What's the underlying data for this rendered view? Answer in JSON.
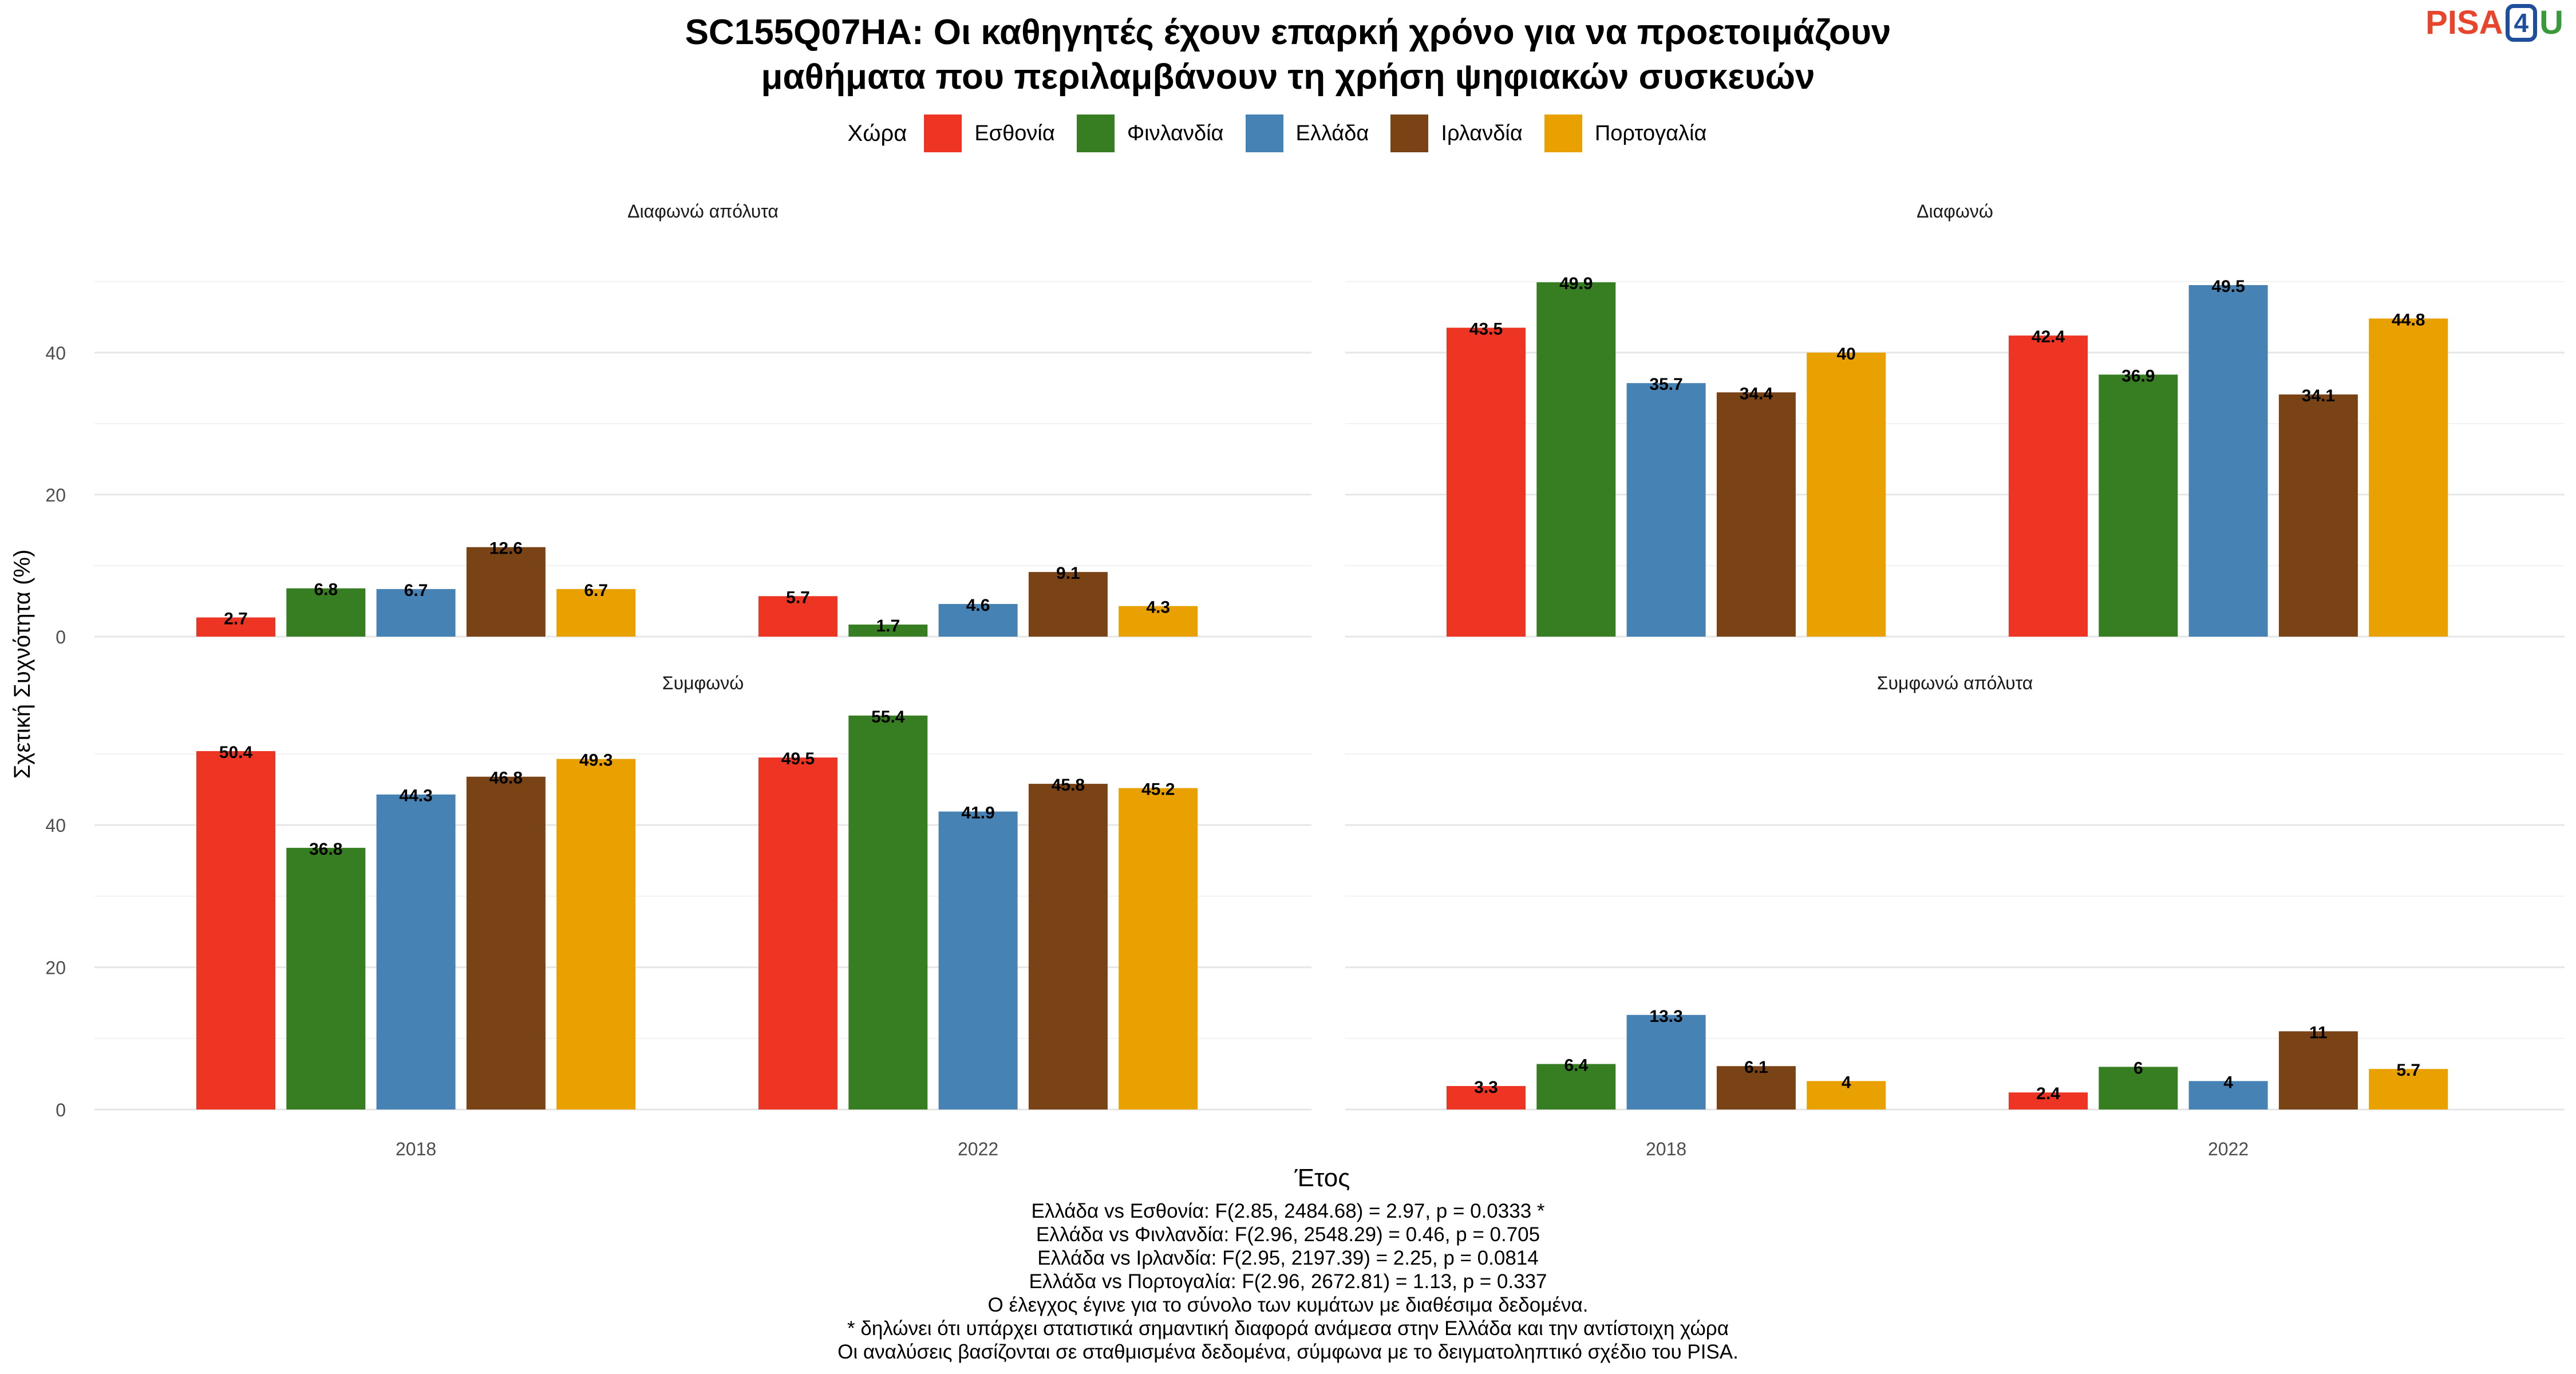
{
  "title_lines": [
    "SC155Q07HA: Οι καθηγητές έχουν επαρκή χρόνο για να προετοιμάζουν",
    "μαθήματα που περιλαμβάνουν τη χρήση ψηφιακών συσκευών"
  ],
  "logo": {
    "pisa": "PISA",
    "four": "4",
    "u": "U"
  },
  "chart_data": {
    "type": "bar",
    "ylabel": "Σχετική Συχνότητα (%)",
    "xlabel": "Έτος",
    "legend_title": "Χώρα",
    "legend_position": "top",
    "ylim": [
      0,
      57
    ],
    "yticks": [
      0,
      20,
      40
    ],
    "grid": true,
    "categories": [
      "2018",
      "2022"
    ],
    "countries": [
      {
        "name": "Εσθονία",
        "color": "#EE3524"
      },
      {
        "name": "Φινλανδία",
        "color": "#377E22"
      },
      {
        "name": "Ελλάδα",
        "color": "#4682B4"
      },
      {
        "name": "Ιρλανδία",
        "color": "#7A4316"
      },
      {
        "name": "Πορτογαλία",
        "color": "#E8A100"
      }
    ],
    "panels": [
      {
        "title": "Διαφωνώ απόλυτα",
        "values": {
          "2018": [
            2.7,
            6.8,
            6.7,
            12.6,
            6.7
          ],
          "2022": [
            5.7,
            1.7,
            4.6,
            9.1,
            4.3
          ]
        }
      },
      {
        "title": "Διαφωνώ",
        "values": {
          "2018": [
            43.5,
            49.9,
            35.7,
            34.4,
            40
          ],
          "2022": [
            42.4,
            36.9,
            49.5,
            34.1,
            44.8
          ]
        }
      },
      {
        "title": "Συμφωνώ",
        "values": {
          "2018": [
            50.4,
            36.8,
            44.3,
            46.8,
            49.3
          ],
          "2022": [
            49.5,
            55.4,
            41.9,
            45.8,
            45.2
          ]
        }
      },
      {
        "title": "Συμφωνώ απόλυτα",
        "values": {
          "2018": [
            3.3,
            6.4,
            13.3,
            6.1,
            4
          ],
          "2022": [
            2.4,
            6,
            4,
            11,
            5.7
          ]
        }
      }
    ]
  },
  "footer_lines": [
    "Ελλάδα vs Εσθονία: F(2.85, 2484.68) = 2.97, p = 0.0333 *",
    "Ελλάδα vs Φινλανδία: F(2.96, 2548.29) = 0.46, p = 0.705",
    "Ελλάδα vs Ιρλανδία: F(2.95, 2197.39) = 2.25, p = 0.0814",
    "Ελλάδα vs Πορτογαλία: F(2.96, 2672.81) = 1.13, p = 0.337",
    "Ο έλεγχος έγινε για το σύνολο των κυμάτων με διαθέσιμα δεδομένα.",
    "* δηλώνει ότι υπάρχει στατιστικά σημαντική διαφορά ανάμεσα στην Ελλάδα και την αντίστοιχη χώρα",
    "Οι αναλύσεις βασίζονται σε σταθμισμένα δεδομένα, σύμφωνα με το δειγματοληπτικό σχέδιο του PISA."
  ]
}
